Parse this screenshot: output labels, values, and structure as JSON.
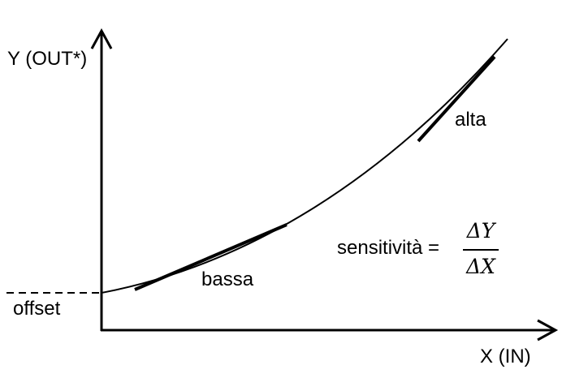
{
  "axes": {
    "y_label": "Y (OUT*)",
    "x_label": "X (IN)"
  },
  "labels": {
    "offset": "offset",
    "low_sensitivity": "bassa",
    "high_sensitivity": "alta",
    "sensitivity_text": "sensitività =",
    "numerator": "ΔY",
    "denominator": "ΔX"
  },
  "colors": {
    "ink": "#000000",
    "background": "#ffffff"
  }
}
